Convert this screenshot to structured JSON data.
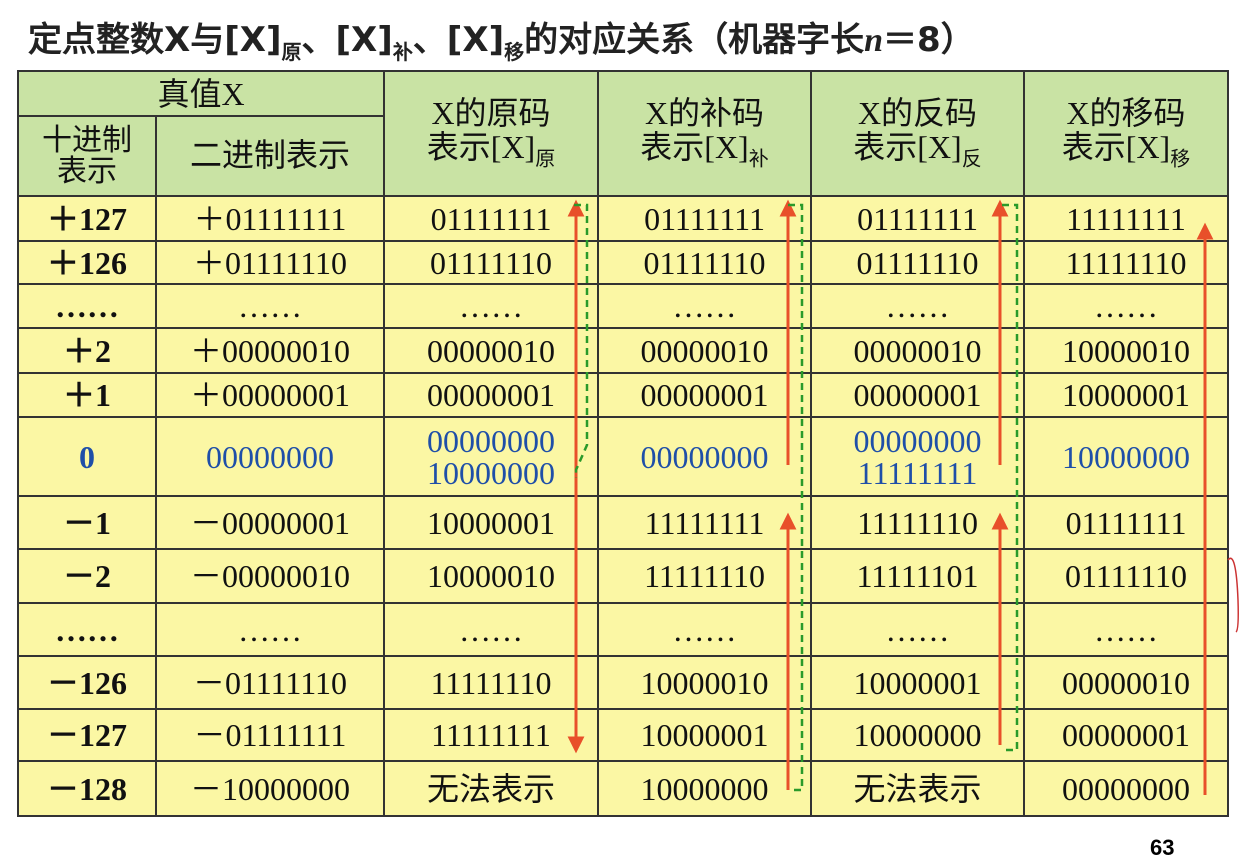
{
  "title": {
    "parts": [
      "定点整数X与[X]",
      "原",
      "、[X]",
      "补",
      "、[X]",
      "移",
      "的对应关系（机器字长",
      "n",
      "＝8）"
    ]
  },
  "table": {
    "header": {
      "group": "真值X",
      "dec": "十进制表示",
      "bin": "二进制表示",
      "cols": [
        [
          "X的原码",
          "表示[X]",
          "原"
        ],
        [
          "X的补码",
          "表示[X]",
          "补"
        ],
        [
          "X的反码",
          "表示[X]",
          "反"
        ],
        [
          "X的移码",
          "表示[X]",
          "移"
        ]
      ]
    },
    "rows": [
      [
        [
          "＋127"
        ],
        [
          "＋01111111"
        ],
        [
          "01111111"
        ],
        [
          "01111111"
        ],
        [
          "01111111"
        ],
        [
          "11111111"
        ]
      ],
      [
        [
          "＋126"
        ],
        [
          "＋01111110"
        ],
        [
          "01111110"
        ],
        [
          "01111110"
        ],
        [
          "01111110"
        ],
        [
          "11111110"
        ]
      ],
      [
        [
          "……"
        ],
        [
          "……"
        ],
        [
          "……"
        ],
        [
          "……"
        ],
        [
          "……"
        ],
        [
          "……"
        ]
      ],
      [
        [
          "＋2"
        ],
        [
          "＋00000010"
        ],
        [
          "00000010"
        ],
        [
          "00000010"
        ],
        [
          "00000010"
        ],
        [
          "10000010"
        ]
      ],
      [
        [
          "＋1"
        ],
        [
          "＋00000001"
        ],
        [
          "00000001"
        ],
        [
          "00000001"
        ],
        [
          "00000001"
        ],
        [
          "10000001"
        ]
      ],
      [
        [
          "0"
        ],
        [
          "00000000"
        ],
        [
          "00000000",
          "10000000"
        ],
        [
          "00000000"
        ],
        [
          "00000000",
          "11111111"
        ],
        [
          "10000000"
        ]
      ],
      [
        [
          "－1"
        ],
        [
          "－00000001"
        ],
        [
          "10000001"
        ],
        [
          "11111111"
        ],
        [
          "11111110"
        ],
        [
          "01111111"
        ]
      ],
      [
        [
          "－2"
        ],
        [
          "－00000010"
        ],
        [
          "10000010"
        ],
        [
          "11111110"
        ],
        [
          "11111101"
        ],
        [
          "01111110"
        ]
      ],
      [
        [
          "……"
        ],
        [
          "……"
        ],
        [
          "……"
        ],
        [
          "……"
        ],
        [
          "……"
        ],
        [
          "……"
        ]
      ],
      [
        [
          "－126"
        ],
        [
          "－01111110"
        ],
        [
          "11111110"
        ],
        [
          "10000010"
        ],
        [
          "10000001"
        ],
        [
          "00000010"
        ]
      ],
      [
        [
          "－127"
        ],
        [
          "－01111111"
        ],
        [
          "11111111"
        ],
        [
          "10000001"
        ],
        [
          "10000000"
        ],
        [
          "00000001"
        ]
      ],
      [
        [
          "－128"
        ],
        [
          "－10000000"
        ],
        [
          "无法表示"
        ],
        [
          "10000000"
        ],
        [
          "无法表示"
        ],
        [
          "00000000"
        ]
      ]
    ]
  },
  "page_number": "63"
}
